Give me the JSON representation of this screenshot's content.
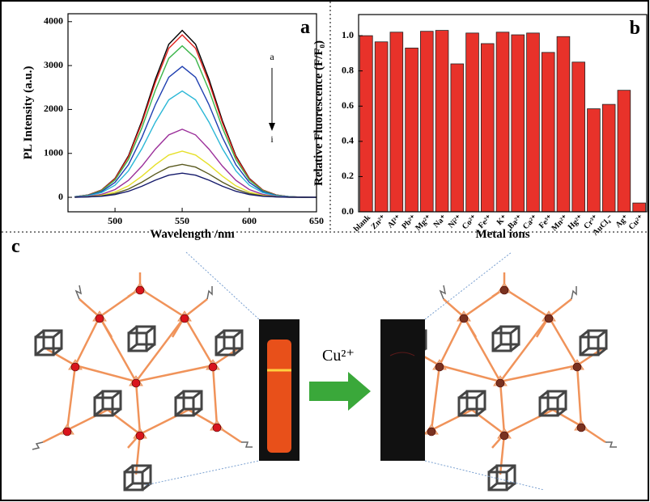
{
  "chart_data": [
    {
      "type": "line",
      "panel_label": "a",
      "x_label": "Wavelength /nm",
      "y_label": "PL Intensity (a.u.)",
      "annotations": [
        "a",
        "i"
      ],
      "x": [
        470,
        480,
        490,
        500,
        510,
        520,
        530,
        540,
        550,
        560,
        570,
        580,
        590,
        600,
        610,
        620,
        630,
        640,
        650
      ],
      "xlim": [
        465,
        650
      ],
      "xticks": [
        500,
        550,
        600,
        650
      ],
      "ylim": [
        -330,
        4180
      ],
      "yticks": [
        0,
        1000,
        2000,
        3000,
        4000
      ],
      "series": [
        {
          "color": "#000000",
          "values": [
            15,
            53,
            167,
            433,
            946,
            1740,
            2687,
            3485,
            3800,
            3485,
            2687,
            1740,
            946,
            433,
            167,
            53,
            15,
            4,
            0
          ]
        },
        {
          "color": "#e0201b",
          "values": [
            15,
            52,
            163,
            422,
            921,
            1695,
            2616,
            3393,
            3700,
            3393,
            2616,
            1695,
            921,
            422,
            163,
            52,
            15,
            4,
            0
          ]
        },
        {
          "color": "#3bb54a",
          "values": [
            14,
            48,
            152,
            393,
            859,
            1580,
            2439,
            3164,
            3450,
            3164,
            2439,
            1580,
            859,
            393,
            152,
            48,
            14,
            3,
            0
          ]
        },
        {
          "color": "#1f3fb0",
          "values": [
            12,
            42,
            131,
            340,
            742,
            1365,
            2107,
            2733,
            2980,
            2733,
            2107,
            1365,
            742,
            340,
            131,
            42,
            12,
            3,
            0
          ]
        },
        {
          "color": "#2ab7d6",
          "values": [
            10,
            34,
            106,
            276,
            603,
            1108,
            1711,
            2219,
            2420,
            2219,
            1711,
            1108,
            603,
            276,
            106,
            34,
            10,
            2,
            0
          ]
        },
        {
          "color": "#9b2f9a",
          "values": [
            6,
            22,
            68,
            177,
            386,
            710,
            1096,
            1421,
            1550,
            1421,
            1096,
            710,
            386,
            177,
            68,
            22,
            6,
            2,
            0
          ]
        },
        {
          "color": "#e6e02a",
          "values": [
            4,
            15,
            46,
            120,
            261,
            481,
            742,
            963,
            1050,
            963,
            742,
            481,
            261,
            120,
            46,
            15,
            4,
            1,
            0
          ]
        },
        {
          "color": "#5a5a20",
          "values": [
            3,
            11,
            33,
            86,
            187,
            344,
            530,
            688,
            750,
            688,
            530,
            344,
            187,
            86,
            33,
            11,
            3,
            1,
            0
          ]
        },
        {
          "color": "#151a6b",
          "values": [
            2,
            8,
            24,
            63,
            137,
            252,
            389,
            504,
            550,
            504,
            389,
            252,
            137,
            63,
            24,
            8,
            2,
            1,
            0
          ]
        }
      ]
    },
    {
      "type": "bar",
      "panel_label": "b",
      "x_label": "Metal ions",
      "y_label": "Relative Fluorescence (F/F₀)",
      "color": "#e8322a",
      "categories": [
        "blank",
        "Zn²⁺",
        "Al³⁺",
        "Pb²⁺",
        "Mg²⁺",
        "Na⁺",
        "Ni²⁺",
        "Co²⁺",
        "Fe²⁺",
        "K⁺",
        "Ba²⁺",
        "Ca²⁺",
        "Fe³⁺",
        "Mn²⁺",
        "Hg²⁺",
        "Cr³⁺",
        "AuCl₄⁻",
        "Ag⁺",
        "Cu²⁺"
      ],
      "values": [
        1.0,
        0.965,
        1.02,
        0.93,
        1.025,
        1.03,
        0.84,
        1.015,
        0.955,
        1.02,
        1.005,
        1.015,
        0.905,
        0.995,
        0.85,
        0.585,
        0.61,
        0.69,
        0.05
      ],
      "ylim": [
        0,
        1.12
      ],
      "yticks": [
        {
          "value": 0,
          "label": "0.0"
        },
        0.2,
        0.4,
        0.6,
        0.8,
        {
          "value": 1,
          "label": "1.0"
        }
      ]
    }
  ],
  "diagram": {
    "label": "c",
    "arrow_label": "Cu²⁺"
  }
}
